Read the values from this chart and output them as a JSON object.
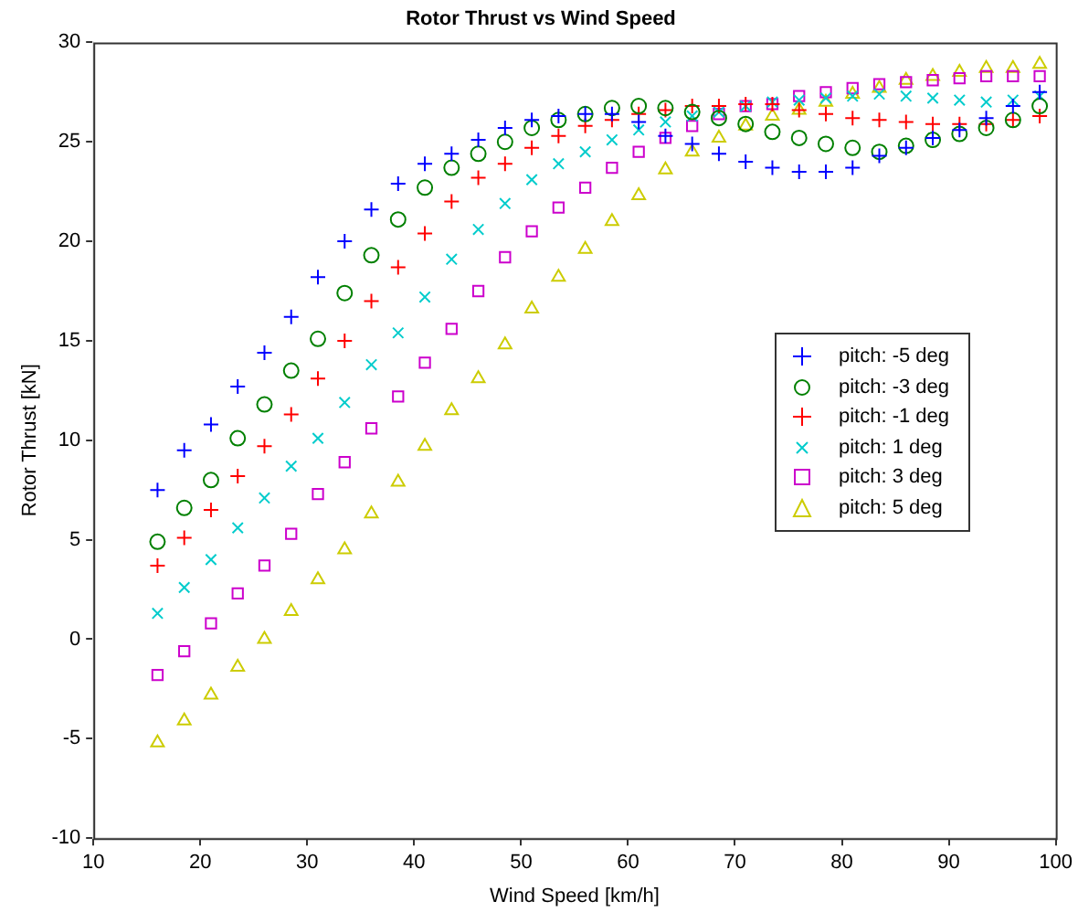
{
  "chart_data": {
    "type": "scatter",
    "title": "Rotor Thrust vs Wind Speed",
    "xlabel": "Wind Speed [km/h]",
    "ylabel": "Rotor Thrust [kN]",
    "x": [
      16,
      18.5,
      21,
      23.5,
      26,
      28.5,
      31,
      33.5,
      36,
      38.5,
      41,
      43.5,
      46,
      48.5,
      51,
      53.5,
      56,
      58.5,
      61,
      63.5,
      66,
      68.5,
      71,
      73.5,
      76,
      78.5,
      81,
      83.5,
      86,
      88.5,
      91,
      93.5,
      96,
      98.5
    ],
    "series": [
      {
        "name": "pitch: -5 deg",
        "color": "#0000ff",
        "marker": "cross",
        "values": [
          7.5,
          9.5,
          10.8,
          12.7,
          14.4,
          16.2,
          18.2,
          20.0,
          21.6,
          22.9,
          23.9,
          24.4,
          25.1,
          25.7,
          26.1,
          26.3,
          26.4,
          26.4,
          26.0,
          25.3,
          24.9,
          24.4,
          24.0,
          23.7,
          23.5,
          23.5,
          23.7,
          24.3,
          24.7,
          25.2,
          25.6,
          26.2,
          26.8,
          27.5
        ]
      },
      {
        "name": "pitch: -3 deg",
        "color": "#008000",
        "marker": "circle",
        "values": [
          4.9,
          6.6,
          8.0,
          10.1,
          11.8,
          13.5,
          15.1,
          17.4,
          19.3,
          21.1,
          22.7,
          23.7,
          24.4,
          25.0,
          25.7,
          26.1,
          26.4,
          26.7,
          26.8,
          26.7,
          26.5,
          26.2,
          25.9,
          25.5,
          25.2,
          24.9,
          24.7,
          24.5,
          24.8,
          25.1,
          25.4,
          25.7,
          26.1,
          26.8
        ]
      },
      {
        "name": "pitch: -1 deg",
        "color": "#ff0000",
        "marker": "cross",
        "values": [
          3.7,
          5.1,
          6.5,
          8.2,
          9.7,
          11.3,
          13.1,
          15.0,
          17.0,
          18.7,
          20.4,
          22.0,
          23.2,
          23.9,
          24.7,
          25.3,
          25.8,
          26.1,
          26.4,
          26.6,
          26.8,
          26.8,
          26.9,
          26.9,
          26.6,
          26.4,
          26.2,
          26.1,
          26.0,
          25.9,
          25.9,
          25.9,
          26.1,
          26.3
        ]
      },
      {
        "name": "pitch: 1 deg",
        "color": "#00cccc",
        "marker": "x",
        "values": [
          1.3,
          2.6,
          4.0,
          5.6,
          7.1,
          8.7,
          10.1,
          11.9,
          13.8,
          15.4,
          17.2,
          19.1,
          20.6,
          21.9,
          23.1,
          23.9,
          24.5,
          25.1,
          25.6,
          26.0,
          26.3,
          26.5,
          26.8,
          27.0,
          27.1,
          27.2,
          27.3,
          27.4,
          27.3,
          27.2,
          27.1,
          27.0,
          27.1,
          27.3
        ]
      },
      {
        "name": "pitch: 3 deg",
        "color": "#cc00cc",
        "marker": "square",
        "values": [
          -1.8,
          -0.6,
          0.8,
          2.3,
          3.7,
          5.3,
          7.3,
          8.9,
          10.6,
          12.2,
          13.9,
          15.6,
          17.5,
          19.2,
          20.5,
          21.7,
          22.7,
          23.7,
          24.5,
          25.2,
          25.8,
          26.4,
          26.8,
          26.9,
          27.3,
          27.5,
          27.7,
          27.9,
          28.0,
          28.1,
          28.2,
          28.3,
          28.3,
          28.3
        ]
      },
      {
        "name": "pitch: 5 deg",
        "color": "#cccc00",
        "marker": "triangle",
        "values": [
          -5.2,
          -4.1,
          -2.8,
          -1.4,
          0.0,
          1.4,
          3.0,
          4.5,
          6.3,
          7.9,
          9.7,
          11.5,
          13.1,
          14.8,
          16.6,
          18.2,
          19.6,
          21.0,
          22.3,
          23.6,
          24.5,
          25.2,
          25.8,
          26.3,
          26.6,
          27.0,
          27.4,
          27.7,
          28.1,
          28.3,
          28.5,
          28.7,
          28.7,
          28.9
        ]
      }
    ],
    "xlim": [
      10,
      100
    ],
    "xticks": [
      10,
      20,
      30,
      40,
      50,
      60,
      70,
      80,
      90,
      100
    ],
    "ylim": [
      -10,
      30
    ],
    "yticks": [
      -10,
      -5,
      0,
      5,
      10,
      15,
      20,
      25,
      30
    ],
    "grid": false,
    "legend": "right"
  }
}
